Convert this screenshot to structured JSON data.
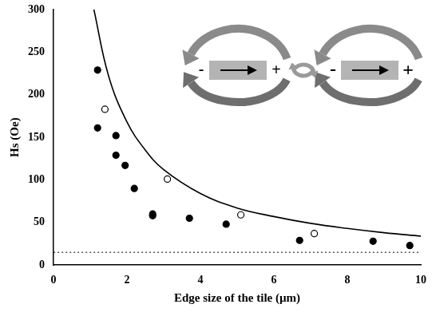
{
  "chart_data": {
    "type": "scatter",
    "x_label": "Edge size of the tile (µm)",
    "y_label": "Hs (Oe)",
    "xlim": [
      0,
      10
    ],
    "xticks": [
      0,
      2,
      4,
      6,
      8,
      10
    ],
    "ylim": [
      0,
      300
    ],
    "yticks": [
      0,
      50,
      100,
      150,
      200,
      250,
      300
    ],
    "grid": false,
    "annotations": [
      "-",
      "+",
      "-",
      "+"
    ],
    "series": [
      {
        "type": "scatter",
        "marker": "circle",
        "line_style": "none",
        "color": "#000000",
        "x": [
          1.2,
          1.2,
          1.7,
          1.7,
          1.95,
          2.2,
          2.7,
          2.7,
          3.7,
          4.7,
          6.7,
          8.7,
          9.7
        ],
        "values": [
          229,
          161,
          152,
          129,
          117,
          90,
          60,
          58,
          55,
          48,
          29,
          28,
          23
        ]
      },
      {
        "type": "scatter",
        "marker": "open_circle",
        "line_style": "none",
        "color": "#000000",
        "x": [
          1.4,
          3.1,
          5.1,
          7.1
        ],
        "values": [
          183,
          101,
          59,
          37
        ]
      },
      {
        "type": "line",
        "marker": "none",
        "line_style": "solid",
        "color": "#000000",
        "x": [
          1.1,
          1.5,
          2,
          2.5,
          3,
          4,
          5,
          6,
          7,
          8,
          9,
          10
        ],
        "values": [
          300,
          222,
          168,
          135,
          112,
          84,
          67,
          57,
          49,
          43,
          38,
          34
        ]
      },
      {
        "type": "line",
        "marker": "none",
        "line_style": "dotted",
        "color": "#000000",
        "x": [
          0,
          10
        ],
        "values": [
          15,
          15
        ]
      }
    ]
  }
}
